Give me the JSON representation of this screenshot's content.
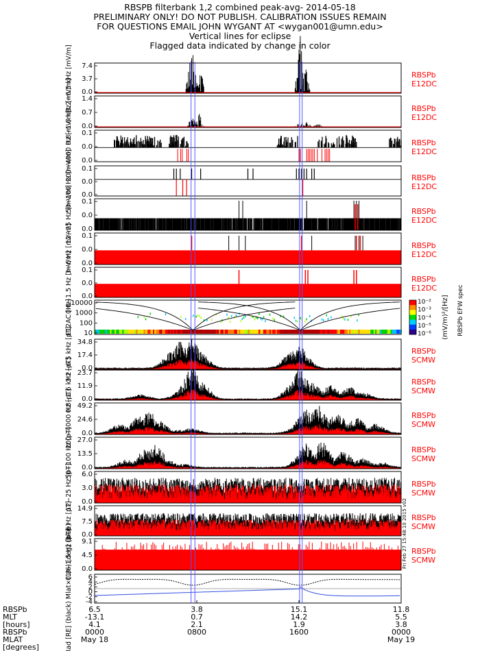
{
  "header": {
    "lines": [
      "RBSPB filterbank 1,2 combined peak-avg- 2014-05-18",
      "PRELIMINARY ONLY! DO NOT PUBLISH. CALIBRATION ISSUES REMAIN",
      "FOR QUESTIONS EMAIL JOHN WYGANT AT <wygan001@umn.edu>",
      "Vertical lines for eclipse",
      "Flagged data indicated by change in color"
    ]
  },
  "colors": {
    "data": "#000000",
    "flag": "#ff0000",
    "eclipse": "#5555ff",
    "ephem": "#2f4fe0",
    "frame": "#000000",
    "label_red": "#ff0000"
  },
  "chart_data": {
    "type": "line",
    "date": "2014-05-18",
    "time_range": [
      "2014-05-18 00:00",
      "2014-05-19 00:00"
    ],
    "eclipse_lines_hours": [
      7.55,
      7.85,
      16.05,
      16.25
    ],
    "timestamp_note": "Fri Feb 27 15:48:10 2015 v02",
    "time_axis": {
      "rows": [
        {
          "label": "RBSPb",
          "values": [
            "6.5",
            "3.8",
            "15.1",
            "11.8"
          ]
        },
        {
          "label": "MLT",
          "values": [
            "-13.1",
            "0.7",
            "14.2",
            "5.5"
          ]
        },
        {
          "label": "[hours]",
          "values": [
            "4.1",
            "2.1",
            "1.9",
            "3.8"
          ]
        },
        {
          "label": "RBSPb",
          "values": [
            "0000",
            "0800",
            "1600",
            "0000"
          ]
        },
        {
          "label": "MLAT",
          "values": [
            "May 18",
            "",
            "",
            "May 19"
          ]
        },
        {
          "label": "[degrees]",
          "values": [
            "",
            "",
            "",
            ""
          ]
        }
      ],
      "tick_hours": [
        0,
        8,
        16,
        24
      ]
    },
    "panels": [
      {
        "ylabel": "3.2−6.5 kHz [mV/m]",
        "ylim": [
          0,
          7.4
        ],
        "ticks": [
          "7.4",
          "3.7",
          "0.0"
        ],
        "instrument": "RBSPb",
        "channel": "E12DC",
        "kind": "burst_e",
        "events": [
          [
            7.6,
            1.6
          ],
          [
            8.2,
            1.0
          ],
          [
            16.1,
            2.0
          ],
          [
            16.5,
            0.9
          ]
        ]
      },
      {
        "ylabel": "0.8−1.6 kHz [mV/m]",
        "ylim": [
          0,
          1.4
        ],
        "ticks": [
          "1.4",
          "0.7",
          "0.0"
        ],
        "instrument": "RBSPb",
        "channel": "E12DC",
        "kind": "burst_e",
        "events": [
          [
            7.6,
            0.4
          ],
          [
            8.2,
            0.45
          ],
          [
            16.1,
            0.25
          ],
          [
            16.6,
            0.2
          ],
          [
            17.5,
            0.15
          ]
        ]
      },
      {
        "ylabel": "200−4000 Hz [mV/m]",
        "ylim": [
          0,
          0.1
        ],
        "ticks": [
          "0.1",
          "0.0",
          "0.0"
        ],
        "instrument": "RBSPb",
        "channel": "E12DC",
        "kind": "steps",
        "blocks": [
          [
            1.5,
            5.3
          ],
          [
            5.8,
            7.4
          ],
          [
            14.3,
            16.0
          ],
          [
            17.5,
            20.5
          ],
          [
            23.0,
            24.0
          ]
        ],
        "flags": [
          [
            6.5,
            7.7
          ],
          [
            16.0,
            18.5
          ]
        ]
      },
      {
        "ylabel": "50−100 Hz [mV/m]",
        "ylim": [
          0,
          0.1
        ],
        "ticks": [
          "0.1",
          "0.0",
          "0.0"
        ],
        "instrument": "RBSPb",
        "channel": "E12DC",
        "kind": "sparse",
        "lines": [
          6.2,
          6.4,
          6.7,
          7.6,
          8.3,
          12.0,
          12.4,
          15.8,
          16.0,
          16.2,
          16.4,
          16.6,
          17.0,
          17.2
        ],
        "flags": [
          6.4,
          6.9,
          7.2,
          16.3
        ]
      },
      {
        "ylabel": "12−25 Hz [mV/m]",
        "ylim": [
          0,
          0.1
        ],
        "ticks": [
          "0.1",
          "0.0",
          "0.0"
        ],
        "instrument": "RBSPb",
        "channel": "E12DC",
        "kind": "dense_low",
        "lines": [
          11.3,
          11.6,
          16.6,
          20.3,
          20.5,
          20.7
        ],
        "flags": [
          20.4,
          20.6
        ]
      },
      {
        "ylabel": "3−6 Hz [mV/m]",
        "ylim": [
          0,
          0.1
        ],
        "ticks": [
          "0.1",
          "0.0",
          "0.0"
        ],
        "instrument": "RBSPb",
        "channel": "E12DC",
        "kind": "red_fill",
        "lines": [
          10.5,
          11.3,
          11.8,
          17.0,
          20.4,
          20.7,
          21.0
        ],
        "flags": [
          7.6,
          16.2,
          20.5,
          20.8
        ]
      },
      {
        "ylabel": "0.8−1.5 Hz [mV/m]",
        "ylim": [
          0,
          0.1
        ],
        "ticks": [
          "0.1",
          "0.0",
          "0.0"
        ],
        "instrument": "RBSPb",
        "channel": "E12DC",
        "kind": "red_fill",
        "lines": [],
        "flags": [
          11.3,
          16.5,
          16.7,
          20.3,
          20.5
        ]
      },
      {
        "ylabel": "E12AC [Hz]",
        "ylim": [
          10,
          10000
        ],
        "ticks": [
          "10000",
          "1000",
          "100",
          "10"
        ],
        "kind": "spectrogram",
        "log": true,
        "colorbar": {
          "label": "(mV/m)²/[Hz]",
          "label2": "RBSPb EFW spec",
          "ticks": [
            "10⁻²",
            "10⁻³",
            "10⁻⁴",
            "10⁻⁵",
            "10⁻⁶"
          ]
        }
      },
      {
        "ylabel": "3.2−6.5 kHz [pT]",
        "ylim": [
          0,
          34.8
        ],
        "ticks": [
          "34.8",
          "17.4",
          "0.0"
        ],
        "instrument": "RBSPb",
        "channel": "SCMW",
        "kind": "burst_b",
        "events": [
          [
            6.0,
            0.55
          ],
          [
            6.8,
            0.9
          ],
          [
            7.6,
            1.0
          ],
          [
            8.3,
            0.5
          ],
          [
            15.4,
            0.6
          ],
          [
            16.1,
            0.7
          ]
        ]
      },
      {
        "ylabel": "0.8−1.6 kHz [pT]",
        "ylim": [
          0,
          23.7
        ],
        "ticks": [
          "23.7",
          "11.9",
          "0.0"
        ],
        "instrument": "RBSPb",
        "channel": "SCMW",
        "kind": "broad",
        "shape": [
          [
            3.6,
            0.15
          ],
          [
            7.0,
            0.4
          ],
          [
            7.6,
            1.0
          ],
          [
            8.3,
            0.6
          ],
          [
            15.5,
            0.5
          ],
          [
            16.1,
            1.0
          ],
          [
            17.0,
            0.55
          ],
          [
            18.5,
            0.45
          ],
          [
            20.0,
            0.4
          ],
          [
            21.0,
            0.2
          ]
        ]
      },
      {
        "ylabel": "200−4000 Hz [pT]",
        "ylim": [
          0,
          49.2
        ],
        "ticks": [
          "49.2",
          "24.6",
          "0.0"
        ],
        "instrument": "RBSPb",
        "channel": "SCMW",
        "kind": "broad",
        "shape": [
          [
            2.0,
            0.3
          ],
          [
            3.5,
            0.55
          ],
          [
            4.3,
            0.7
          ],
          [
            5.0,
            0.4
          ],
          [
            6.5,
            0.1
          ],
          [
            7.6,
            0.15
          ],
          [
            15.8,
            0.2
          ],
          [
            16.5,
            0.75
          ],
          [
            17.5,
            0.9
          ],
          [
            19.0,
            0.7
          ],
          [
            20.5,
            0.5
          ],
          [
            22.0,
            0.3
          ]
        ]
      },
      {
        "ylabel": "50−100 Hz [pT]",
        "ylim": [
          0,
          27.0
        ],
        "ticks": [
          "27.0",
          "13.5",
          "0.0"
        ],
        "instrument": "RBSPb",
        "channel": "SCMW",
        "kind": "broad",
        "shape": [
          [
            2.5,
            0.25
          ],
          [
            4.0,
            0.6
          ],
          [
            4.8,
            0.7
          ],
          [
            5.5,
            0.3
          ],
          [
            7.0,
            0.1
          ],
          [
            15.8,
            0.1
          ],
          [
            16.5,
            0.75
          ],
          [
            17.8,
            0.8
          ],
          [
            19.5,
            0.5
          ],
          [
            21.0,
            0.3
          ],
          [
            22.5,
            0.15
          ]
        ]
      },
      {
        "ylabel": "12−25 Hz [pT]",
        "ylim": [
          0,
          6.0
        ],
        "ticks": [
          "6.0",
          "3.0",
          "0.0"
        ],
        "instrument": "RBSPb",
        "channel": "SCMW",
        "kind": "noise",
        "level": 0.55,
        "amp": 0.25
      },
      {
        "ylabel": "3−6 Hz [pT]",
        "ylim": [
          0,
          14.9
        ],
        "ticks": [
          "14.9",
          "7.5",
          "0.0"
        ],
        "instrument": "RBSPb",
        "channel": "SCMW",
        "kind": "noise",
        "level": 0.55,
        "amp": 0.2
      },
      {
        "ylabel": "0.8−1.5 Hz [pT]",
        "ylim": [
          0,
          9.1
        ],
        "ticks": [
          "9.1",
          "4.5",
          "0.0"
        ],
        "instrument": "RBSPb",
        "channel": "SCMW",
        "kind": "red_block",
        "level": 0.65
      },
      {
        "ylabel": "Rad [RE] (black) Mlat×(1/6) [deg] (blue)",
        "ylim": [
          -6,
          6
        ],
        "ticks": [
          "6",
          "4",
          "2",
          "0",
          "-2",
          "-4"
        ],
        "kind": "ephem"
      }
    ]
  }
}
